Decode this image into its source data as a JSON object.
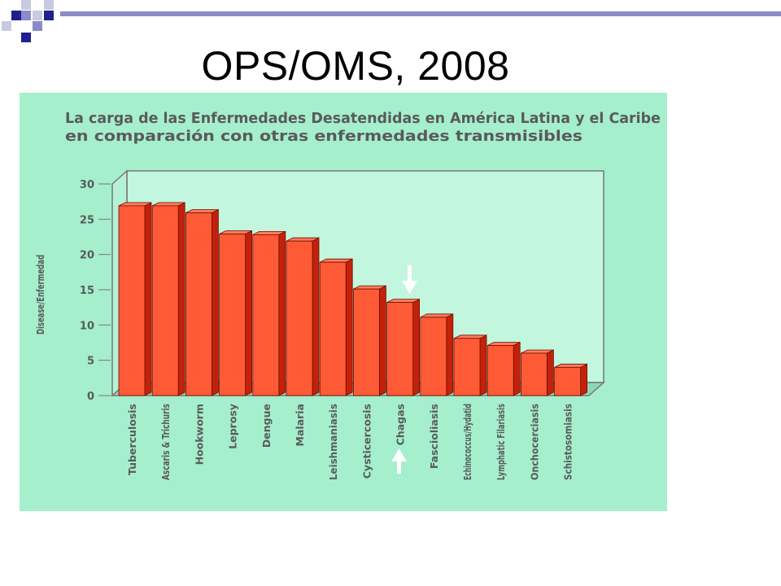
{
  "slide": {
    "title": "OPS/OMS, 2008"
  },
  "colors": {
    "slide_accent_dark": "#1f1f8f",
    "slide_accent_mid": "#8b8bc7",
    "slide_accent_light": "#c9c9e4",
    "chart_background": "#a5efcd",
    "plot_wall": "#c2f6df",
    "bar_front": "#ff5a36",
    "bar_side": "#c4210a",
    "bar_top": "#ff7b5c",
    "title_text": "#5a5a5a"
  },
  "chart_data": {
    "type": "bar",
    "title": "La carga de las Enfermedades Desatendidas en América Latina y el Caribe",
    "subtitle": "en comparación con otras enfermedades transmisibles",
    "xlabel": "",
    "ylabel": "Disease/Enfermedad",
    "ylim": [
      0,
      30
    ],
    "yticks": [
      "0",
      "5",
      "10",
      "15",
      "20",
      "25",
      "30"
    ],
    "ytick_values": [
      0,
      5,
      10,
      15,
      20,
      25,
      30
    ],
    "categories": [
      "Tuberculosis",
      "Ascaris & Trichuris",
      "Hookworm",
      "Leprosy",
      "Dengue",
      "Malaria",
      "Leishmaniasis",
      "Cysticercosis",
      "Chagas",
      "Fascioliasis",
      "Echinococcus/Hydatid",
      "Lymphatic Filariasis",
      "Onchocerciasis",
      "Schistosomiasis"
    ],
    "values": [
      26.9,
      26.9,
      25.9,
      22.9,
      22.8,
      21.9,
      18.9,
      15.1,
      13.2,
      11.1,
      8.1,
      7.1,
      6.0,
      4.0
    ],
    "highlighted_category": "Chagas",
    "grid": false,
    "legend": "none"
  }
}
